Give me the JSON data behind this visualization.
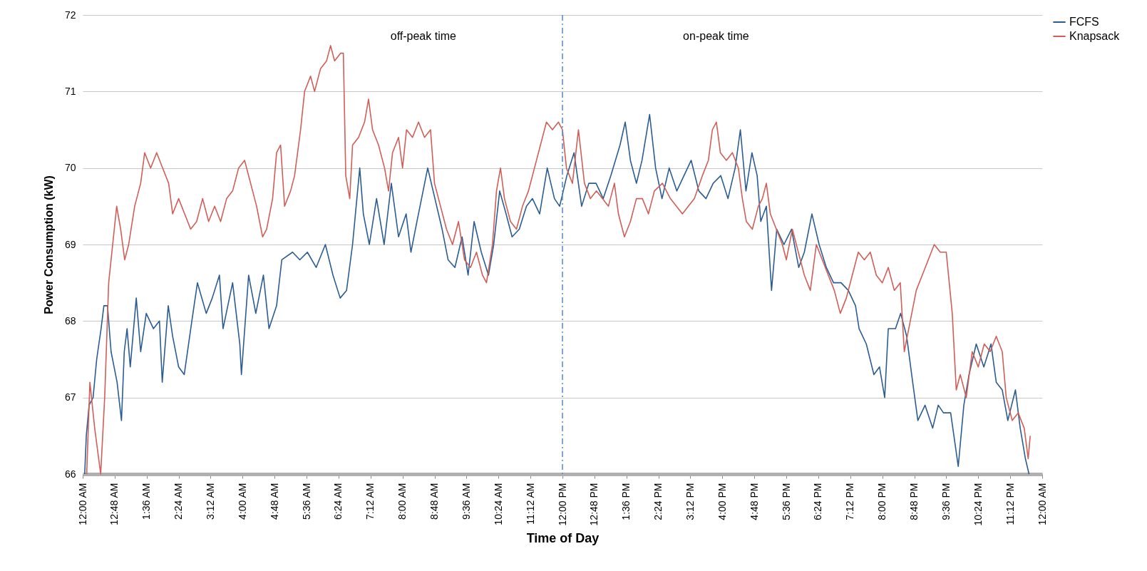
{
  "chart_data": {
    "type": "line",
    "xlabel": "Time of Day",
    "ylabel": "Power Consumption (kW)",
    "xlim": [
      0,
      24
    ],
    "ylim": [
      66,
      72
    ],
    "yticks": [
      66,
      67,
      68,
      69,
      70,
      71,
      72
    ],
    "xticks": [
      {
        "value": 0,
        "label": "12:00 AM"
      },
      {
        "value": 0.8,
        "label": "12:48 AM"
      },
      {
        "value": 1.6,
        "label": "1:36 AM"
      },
      {
        "value": 2.4,
        "label": "2:24 AM"
      },
      {
        "value": 3.2,
        "label": "3:12 AM"
      },
      {
        "value": 4,
        "label": "4:00 AM"
      },
      {
        "value": 4.8,
        "label": "4:48 AM"
      },
      {
        "value": 5.6,
        "label": "5:36 AM"
      },
      {
        "value": 6.4,
        "label": "6:24 AM"
      },
      {
        "value": 7.2,
        "label": "7:12 AM"
      },
      {
        "value": 8,
        "label": "8:00 AM"
      },
      {
        "value": 8.8,
        "label": "8:48 AM"
      },
      {
        "value": 9.6,
        "label": "9:36 AM"
      },
      {
        "value": 10.4,
        "label": "10:24 AM"
      },
      {
        "value": 11.2,
        "label": "11:12 AM"
      },
      {
        "value": 12,
        "label": "12:00 PM"
      },
      {
        "value": 12.8,
        "label": "12:48 PM"
      },
      {
        "value": 13.6,
        "label": "1:36 PM"
      },
      {
        "value": 14.4,
        "label": "2:24 PM"
      },
      {
        "value": 15.2,
        "label": "3:12 PM"
      },
      {
        "value": 16,
        "label": "4:00 PM"
      },
      {
        "value": 16.8,
        "label": "4:48 PM"
      },
      {
        "value": 17.6,
        "label": "5:36 PM"
      },
      {
        "value": 18.4,
        "label": "6:24 PM"
      },
      {
        "value": 19.2,
        "label": "7:12 PM"
      },
      {
        "value": 20,
        "label": "8:00 PM"
      },
      {
        "value": 20.8,
        "label": "8:48 PM"
      },
      {
        "value": 21.6,
        "label": "9:36 PM"
      },
      {
        "value": 22.4,
        "label": "10:24 PM"
      },
      {
        "value": 23.2,
        "label": "11:12 PM"
      },
      {
        "value": 24,
        "label": "12:00 AM"
      }
    ],
    "grid": "y",
    "legend": "right",
    "line_style": "solid",
    "annotations": [
      "off-peak time",
      "on-peak time"
    ],
    "ref_lines": [
      {
        "axis": "x",
        "value": 12,
        "color": "#5b8fd0",
        "line_style": "dashdot"
      }
    ],
    "series": [
      {
        "name": "FCFS",
        "color": "#2b5d92",
        "x": [
          0.05,
          0.09,
          0.16,
          0.26,
          0.35,
          0.46,
          0.53,
          0.62,
          0.71,
          0.86,
          0.97,
          1.04,
          1.11,
          1.19,
          1.34,
          1.45,
          1.59,
          1.77,
          1.92,
          1.99,
          2.14,
          2.25,
          2.4,
          2.54,
          2.73,
          2.87,
          3.09,
          3.24,
          3.42,
          3.51,
          3.75,
          3.93,
          3.97,
          4.15,
          4.33,
          4.52,
          4.66,
          4.85,
          4.98,
          5.25,
          5.43,
          5.62,
          5.84,
          6.07,
          6.26,
          6.44,
          6.6,
          6.75,
          6.93,
          7.02,
          7.17,
          7.35,
          7.54,
          7.72,
          7.9,
          8.09,
          8.21,
          8.36,
          8.63,
          8.81,
          8.99,
          9.14,
          9.31,
          9.49,
          9.64,
          9.79,
          9.97,
          10.15,
          10.28,
          10.43,
          10.59,
          10.74,
          10.92,
          11.1,
          11.25,
          11.43,
          11.62,
          11.8,
          11.93,
          12.11,
          12.29,
          12.48,
          12.66,
          12.84,
          13.02,
          13.21,
          13.44,
          13.57,
          13.7,
          13.85,
          13.99,
          14.18,
          14.33,
          14.49,
          14.67,
          14.86,
          15.04,
          15.22,
          15.41,
          15.59,
          15.77,
          15.96,
          16.14,
          16.32,
          16.45,
          16.59,
          16.74,
          16.87,
          16.96,
          17.1,
          17.23,
          17.36,
          17.54,
          17.73,
          17.91,
          18.05,
          18.24,
          18.42,
          18.6,
          18.78,
          18.97,
          19.15,
          19.33,
          19.42,
          19.6,
          19.79,
          19.93,
          20.06,
          20.15,
          20.33,
          20.46,
          20.61,
          20.76,
          20.89,
          21.07,
          21.26,
          21.4,
          21.53,
          21.71,
          21.9,
          22.04,
          22.17,
          22.35,
          22.54,
          22.72,
          22.85,
          23,
          23.14,
          23.33,
          23.45,
          23.58,
          23.67
        ],
        "values": [
          66,
          66.5,
          66.9,
          67,
          67.5,
          67.9,
          68.2,
          68.2,
          67.6,
          67.2,
          66.7,
          67.6,
          67.9,
          67.4,
          68.3,
          67.6,
          68.1,
          67.9,
          68,
          67.2,
          68.2,
          67.8,
          67.4,
          67.3,
          68,
          68.5,
          68.1,
          68.3,
          68.6,
          67.9,
          68.5,
          67.7,
          67.3,
          68.6,
          68.1,
          68.6,
          67.9,
          68.2,
          68.8,
          68.9,
          68.8,
          68.9,
          68.7,
          69,
          68.6,
          68.3,
          68.4,
          69,
          70,
          69.4,
          69,
          69.6,
          69,
          69.8,
          69.1,
          69.4,
          68.9,
          69.3,
          70,
          69.6,
          69.2,
          68.8,
          68.7,
          69.1,
          68.6,
          69.3,
          68.9,
          68.6,
          69,
          69.7,
          69.4,
          69.1,
          69.2,
          69.5,
          69.6,
          69.4,
          70,
          69.6,
          69.5,
          69.9,
          70.2,
          69.5,
          69.8,
          69.8,
          69.6,
          69.9,
          70.3,
          70.6,
          70.1,
          69.8,
          70.1,
          70.7,
          70,
          69.6,
          70,
          69.7,
          69.9,
          70.1,
          69.7,
          69.6,
          69.8,
          69.9,
          69.6,
          70,
          70.5,
          69.7,
          70.2,
          69.9,
          69.3,
          69.5,
          68.4,
          69.2,
          69,
          69.2,
          68.7,
          68.9,
          69.4,
          69,
          68.7,
          68.5,
          68.5,
          68.4,
          68.2,
          67.9,
          67.7,
          67.3,
          67.4,
          67,
          67.9,
          67.9,
          68.1,
          67.8,
          67.2,
          66.7,
          66.9,
          66.6,
          66.9,
          66.8,
          66.8,
          66.1,
          66.9,
          67.3,
          67.7,
          67.4,
          67.7,
          67.2,
          67.1,
          66.7,
          67.1,
          66.6,
          66.2,
          66
        ]
      },
      {
        "name": "Knapsack",
        "color": "#cf5f58",
        "x": [
          0.1,
          0.18,
          0.3,
          0.45,
          0.55,
          0.65,
          0.75,
          0.85,
          0.95,
          1.05,
          1.15,
          1.3,
          1.45,
          1.55,
          1.7,
          1.85,
          2,
          2.15,
          2.25,
          2.4,
          2.55,
          2.7,
          2.85,
          3,
          3.15,
          3.3,
          3.45,
          3.6,
          3.75,
          3.9,
          4.05,
          4.2,
          4.35,
          4.5,
          4.6,
          4.75,
          4.85,
          4.95,
          5.05,
          5.2,
          5.3,
          5.45,
          5.55,
          5.7,
          5.8,
          5.95,
          6.1,
          6.2,
          6.3,
          6.45,
          6.52,
          6.58,
          6.68,
          6.75,
          6.9,
          7.05,
          7.15,
          7.25,
          7.4,
          7.55,
          7.65,
          7.75,
          7.9,
          8,
          8.1,
          8.25,
          8.4,
          8.55,
          8.7,
          8.8,
          8.95,
          9.1,
          9.25,
          9.4,
          9.55,
          9.7,
          9.85,
          10,
          10.1,
          10.25,
          10.35,
          10.45,
          10.55,
          10.7,
          10.85,
          11,
          11.15,
          11.3,
          11.45,
          11.6,
          11.75,
          11.9,
          12,
          12.1,
          12.25,
          12.4,
          12.55,
          12.7,
          12.85,
          13,
          13.15,
          13.3,
          13.4,
          13.55,
          13.7,
          13.85,
          14,
          14.15,
          14.3,
          14.5,
          14.7,
          14.85,
          15,
          15.15,
          15.3,
          15.5,
          15.65,
          15.75,
          15.85,
          15.95,
          16.1,
          16.25,
          16.4,
          16.5,
          16.6,
          16.75,
          16.9,
          17,
          17.1,
          17.2,
          17.35,
          17.5,
          17.6,
          17.75,
          17.9,
          18.05,
          18.2,
          18.35,
          18.5,
          18.65,
          18.8,
          18.95,
          19.1,
          19.25,
          19.4,
          19.55,
          19.7,
          19.85,
          20,
          20.15,
          20.3,
          20.45,
          20.55,
          20.7,
          20.85,
          21,
          21.15,
          21.3,
          21.45,
          21.6,
          21.75,
          21.85,
          21.95,
          22.1,
          22.25,
          22.4,
          22.55,
          22.7,
          22.85,
          23,
          23.1,
          23.25,
          23.4,
          23.55,
          23.65,
          23.7
        ],
        "values": [
          66,
          67.2,
          66.6,
          66,
          67,
          68.5,
          69,
          69.5,
          69.2,
          68.8,
          69,
          69.5,
          69.8,
          70.2,
          70,
          70.2,
          70,
          69.8,
          69.4,
          69.6,
          69.4,
          69.2,
          69.3,
          69.6,
          69.3,
          69.5,
          69.3,
          69.6,
          69.7,
          70,
          70.1,
          69.8,
          69.5,
          69.1,
          69.2,
          69.6,
          70.2,
          70.3,
          69.5,
          69.7,
          69.9,
          70.5,
          71,
          71.2,
          71,
          71.3,
          71.4,
          71.6,
          71.4,
          71.5,
          71.5,
          69.9,
          69.6,
          70.3,
          70.4,
          70.6,
          70.9,
          70.5,
          70.3,
          70,
          69.7,
          70.2,
          70.4,
          70,
          70.5,
          70.4,
          70.6,
          70.4,
          70.5,
          69.8,
          69.5,
          69.2,
          69,
          69.3,
          68.8,
          68.7,
          68.9,
          68.6,
          68.5,
          69,
          69.7,
          70,
          69.6,
          69.3,
          69.2,
          69.5,
          69.7,
          70,
          70.3,
          70.6,
          70.5,
          70.6,
          70.5,
          70,
          69.8,
          70.5,
          69.8,
          69.6,
          69.7,
          69.6,
          69.5,
          69.8,
          69.4,
          69.1,
          69.3,
          69.6,
          69.6,
          69.4,
          69.7,
          69.8,
          69.6,
          69.5,
          69.4,
          69.5,
          69.6,
          69.9,
          70.1,
          70.5,
          70.6,
          70.2,
          70.1,
          70.2,
          70,
          69.6,
          69.3,
          69.2,
          69.5,
          69.6,
          69.8,
          69.4,
          69.2,
          69,
          68.8,
          69.2,
          68.9,
          68.6,
          68.4,
          69,
          68.8,
          68.6,
          68.4,
          68.1,
          68.3,
          68.6,
          68.9,
          68.8,
          68.9,
          68.6,
          68.5,
          68.7,
          68.4,
          68.5,
          67.6,
          68,
          68.4,
          68.6,
          68.8,
          69,
          68.9,
          68.9,
          68.1,
          67.1,
          67.3,
          67,
          67.6,
          67.4,
          67.7,
          67.6,
          67.8,
          67.6,
          67,
          66.7,
          66.8,
          66.6,
          66.2,
          66.5
        ]
      }
    ]
  }
}
